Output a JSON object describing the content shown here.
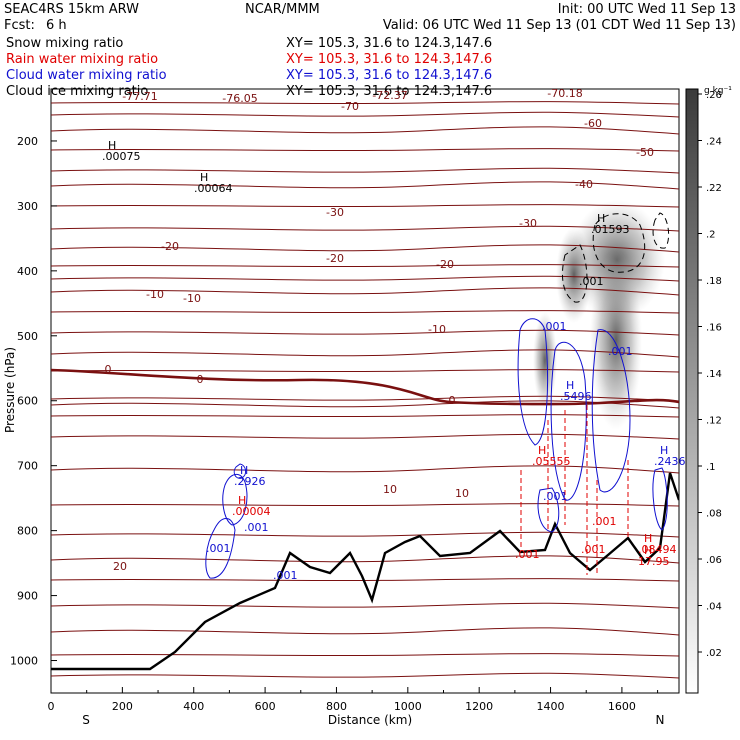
{
  "header": {
    "model": "SEAC4RS 15km ARW",
    "org": "NCAR/MMM",
    "init": "Init: 00 UTC Wed 11 Sep 13",
    "fcst_label": "Fcst:",
    "fcst_value": "6 h",
    "valid": "Valid: 06 UTC Wed 11 Sep 13 (01 CDT Wed 11 Sep 13)"
  },
  "fields": [
    {
      "name": "Snow mixing ratio",
      "xy": "XY= 105.3, 31.6 to 124.3,147.6",
      "color": "#000000"
    },
    {
      "name": "Rain water mixing ratio",
      "xy": "XY= 105.3, 31.6 to 124.3,147.6",
      "color": "#e00000"
    },
    {
      "name": "Cloud water mixing ratio",
      "xy": "XY= 105.3, 31.6 to 124.3,147.6",
      "color": "#1010d0"
    },
    {
      "name": "Cloud ice mixing ratio",
      "xy": "XY= 105.3, 31.6 to 124.3,147.6",
      "color": "#000000"
    }
  ],
  "colorbar": {
    "units": "g kg⁻¹",
    "ticks": [
      ".02",
      ".04",
      ".06",
      ".08",
      ".1",
      ".12",
      ".14",
      ".16",
      ".18",
      ".2",
      ".22",
      ".24",
      ".26"
    ]
  },
  "chart_data": {
    "type": "heatmap",
    "xlabel": "Distance (km)",
    "ylabel": "Pressure (hPa)",
    "xlim": [
      0,
      1760
    ],
    "ylim": [
      1050,
      120
    ],
    "x_ticks": [
      "0",
      "200",
      "400",
      "600",
      "800",
      "1000",
      "1200",
      "1400",
      "1600"
    ],
    "y_ticks": [
      "200",
      "300",
      "400",
      "500",
      "600",
      "700",
      "800",
      "900",
      "1000"
    ],
    "x_end_labels": [
      "S",
      "N"
    ],
    "temperature_labels": [
      "-77.71",
      "-76.05",
      "-72.37",
      "-70.18",
      "-70",
      "-60",
      "-50",
      "-40",
      "-30",
      "-30",
      "-20",
      "-20",
      "-20",
      "-10",
      "-10",
      "-10",
      "0",
      "0",
      "0",
      "10",
      "10",
      "20"
    ],
    "maxima": [
      {
        "field": "snow",
        "label": "H",
        "value": ".00075"
      },
      {
        "field": "snow",
        "label": "H",
        "value": ".00064"
      },
      {
        "field": "snow",
        "label": "H",
        "value": ".01593"
      },
      {
        "field": "snow",
        "label": "",
        "value": ".001"
      },
      {
        "field": "cloud_water",
        "label": "H",
        "value": ".2926"
      },
      {
        "field": "cloud_water",
        "label": "",
        "value": ".001"
      },
      {
        "field": "cloud_water",
        "label": "",
        "value": ".001"
      },
      {
        "field": "cloud_water",
        "label": "",
        "value": ".001"
      },
      {
        "field": "cloud_water",
        "label": "",
        "value": ".001"
      },
      {
        "field": "cloud_water",
        "label": "",
        "value": ".001"
      },
      {
        "field": "cloud_water",
        "label": "",
        "value": ".001"
      },
      {
        "field": "cloud_water",
        "label": "H",
        "value": ".5496"
      },
      {
        "field": "cloud_water",
        "label": "H",
        "value": ".2436"
      },
      {
        "field": "rain",
        "label": "H",
        "value": ".00004"
      },
      {
        "field": "rain",
        "label": "H",
        "value": ".05555"
      },
      {
        "field": "rain",
        "label": "",
        "value": ".001"
      },
      {
        "field": "rain",
        "label": "",
        "value": ".001"
      },
      {
        "field": "rain",
        "label": "",
        "value": ".001"
      },
      {
        "field": "rain",
        "label": "H",
        "value": ".08494"
      },
      {
        "field": "rain",
        "label": "H",
        "value": "17.95"
      }
    ]
  }
}
